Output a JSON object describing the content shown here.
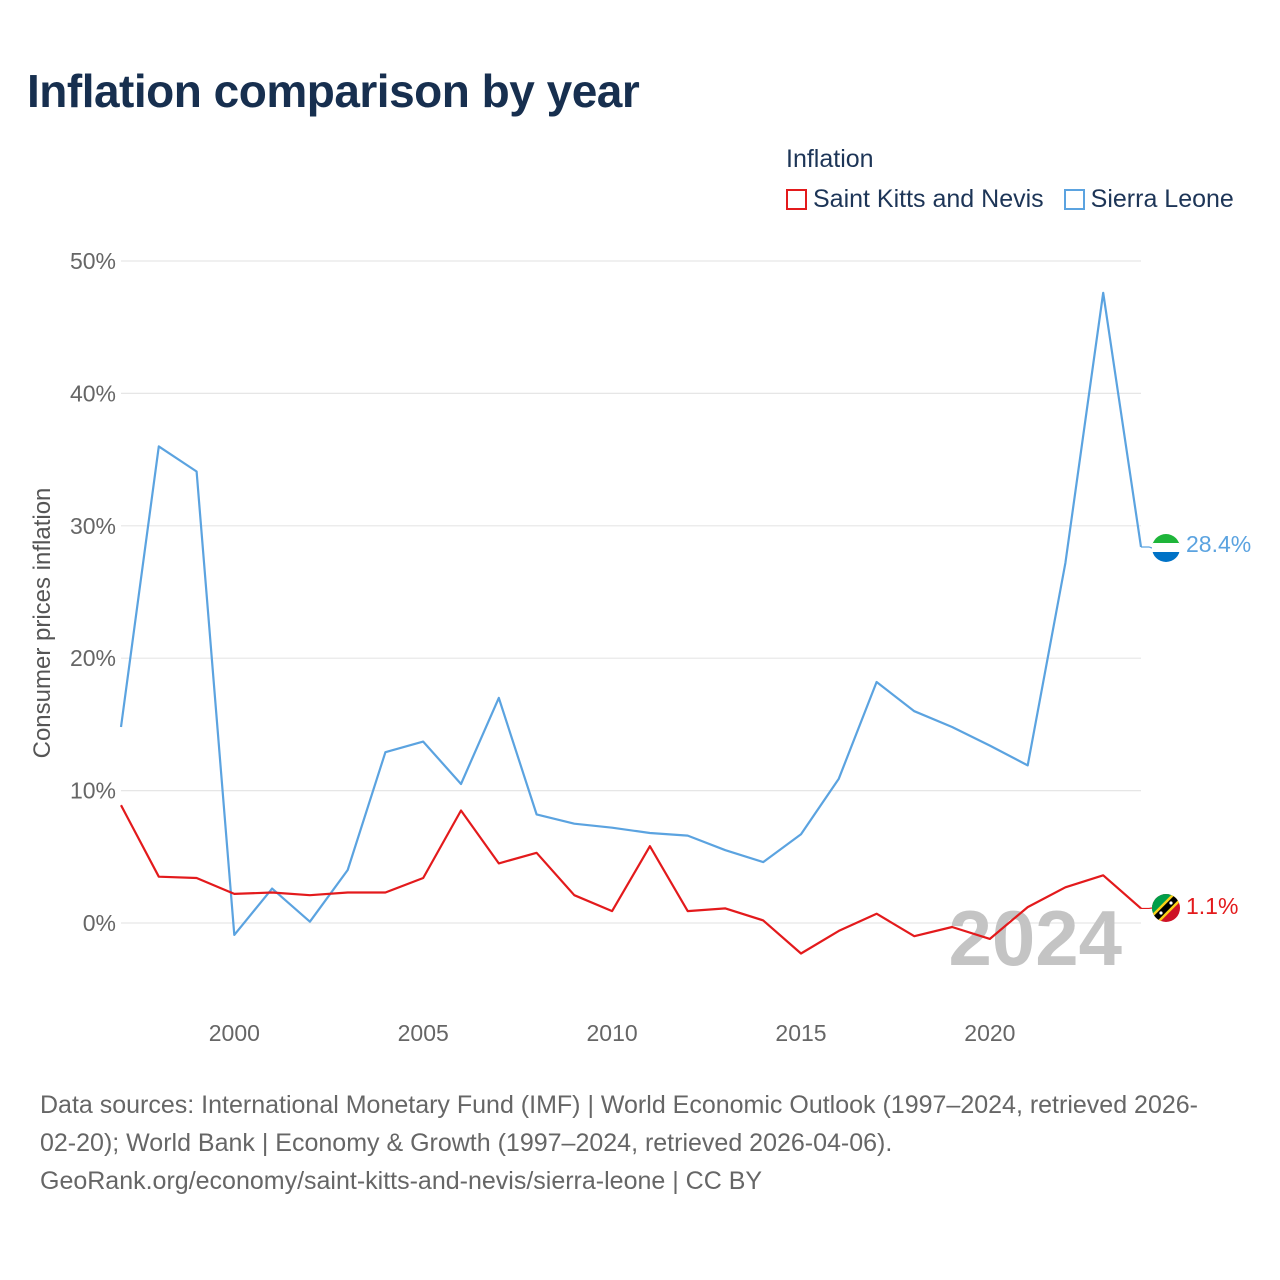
{
  "title": "Inflation comparison by year",
  "legend": {
    "title": "Inflation",
    "items": [
      {
        "label": "Saint Kitts and Nevis",
        "color": "#e31a1c"
      },
      {
        "label": "Sierra Leone",
        "color": "#5ba3e0"
      }
    ]
  },
  "year_display": "2024",
  "source": {
    "line1": "Data sources: International Monetary Fund (IMF) | World Economic Outlook (1997–2024, retrieved 2026-",
    "line2": "02-20); World Bank | Economy & Growth (1997–2024, retrieved 2026-04-06).",
    "line3": "GeoRank.org/economy/saint-kitts-and-nevis/sierra-leone | CC BY"
  },
  "chart_data": {
    "type": "line",
    "title": "Inflation comparison by year",
    "xlabel": "",
    "ylabel": "Consumer prices inflation",
    "xlim": [
      1997,
      2024
    ],
    "ylim": [
      -6,
      50
    ],
    "x_ticks": [
      2000,
      2005,
      2010,
      2015,
      2020
    ],
    "x_tick_labels": [
      "2000",
      "2005",
      "2010",
      "2015",
      "2020"
    ],
    "y_ticks": [
      0,
      10,
      20,
      30,
      40,
      50
    ],
    "y_tick_labels": [
      "0%",
      "10%",
      "20%",
      "30%",
      "40%",
      "50%"
    ],
    "grid": true,
    "legend_position": "top-right",
    "x": [
      1997,
      1998,
      1999,
      2000,
      2001,
      2002,
      2003,
      2004,
      2005,
      2006,
      2007,
      2008,
      2009,
      2010,
      2011,
      2012,
      2013,
      2014,
      2015,
      2016,
      2017,
      2018,
      2019,
      2020,
      2021,
      2022,
      2023,
      2024
    ],
    "series": [
      {
        "name": "Saint Kitts and Nevis",
        "color": "#e31a1c",
        "end_label": "1.1%",
        "values": [
          8.9,
          3.5,
          3.4,
          2.2,
          2.3,
          2.1,
          2.3,
          2.3,
          3.4,
          8.5,
          4.5,
          5.3,
          2.1,
          0.9,
          5.8,
          0.9,
          1.1,
          0.2,
          -2.3,
          -0.6,
          0.7,
          -1.0,
          -0.3,
          -1.2,
          1.2,
          2.7,
          3.6,
          1.1
        ]
      },
      {
        "name": "Sierra Leone",
        "color": "#5ba3e0",
        "end_label": "28.4%",
        "values": [
          14.8,
          36.0,
          34.1,
          -0.9,
          2.6,
          0.1,
          4.0,
          12.9,
          13.7,
          10.5,
          17.0,
          8.2,
          7.5,
          7.2,
          6.8,
          6.6,
          5.5,
          4.6,
          6.7,
          10.9,
          18.2,
          16.0,
          14.8,
          13.4,
          11.9,
          27.2,
          47.6,
          28.4
        ]
      }
    ]
  }
}
